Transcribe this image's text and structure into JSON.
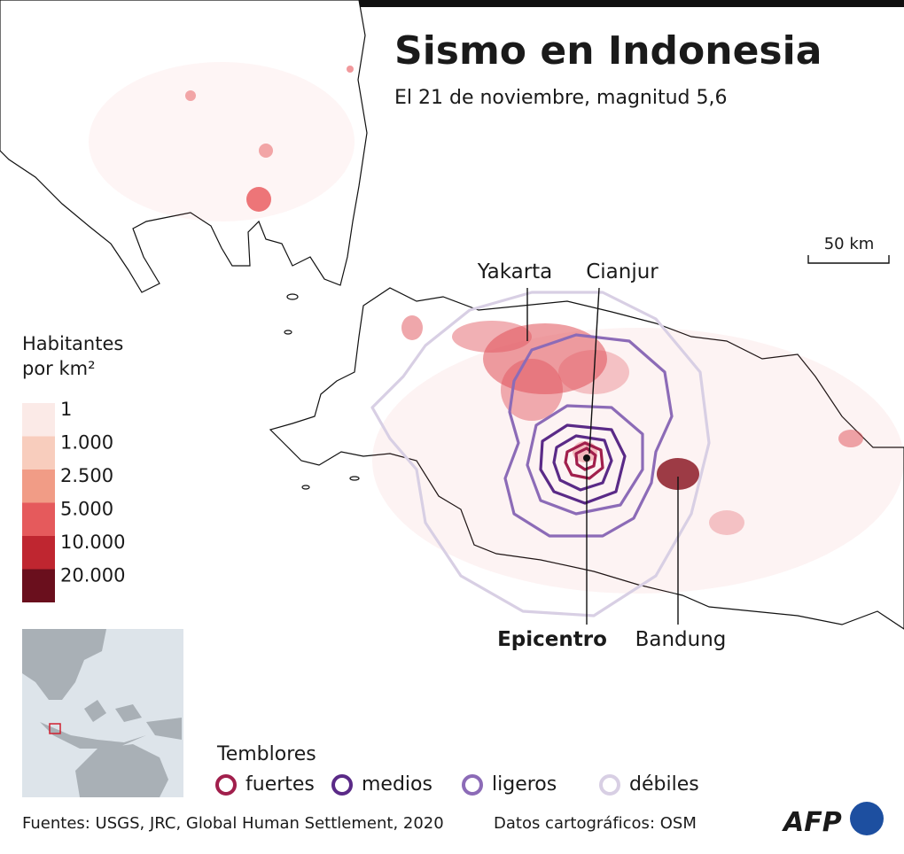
{
  "header": {
    "title": "Sismo en Indonesia",
    "subtitle": "El 21 de noviembre, magnitud 5,6"
  },
  "map": {
    "scale_label": "50 km",
    "places": {
      "yakarta": "Yakarta",
      "cianjur": "Cianjur",
      "epicentro": "Epicentro",
      "bandung": "Bandung"
    }
  },
  "density_legend": {
    "title_lines": [
      "Habitantes",
      "por km²"
    ],
    "classes": [
      {
        "label": "1",
        "color": "#fbeae7"
      },
      {
        "label": "1.000",
        "color": "#f8cdbd"
      },
      {
        "label": "2.500",
        "color": "#f19c86"
      },
      {
        "label": "5.000",
        "color": "#e55a5c"
      },
      {
        "label": "10.000",
        "color": "#bf2630"
      },
      {
        "label": "20.000",
        "color": "#6a0f1d"
      }
    ]
  },
  "shaking_legend": {
    "title": "Temblores",
    "items": [
      {
        "label": "fuertes",
        "color": "#a11f4c"
      },
      {
        "label": "medios",
        "color": "#5a2a87"
      },
      {
        "label": "ligeros",
        "color": "#8c6bb7"
      },
      {
        "label": "débiles",
        "color": "#d8cfe4"
      }
    ]
  },
  "footer": {
    "sources": "Fuentes: USGS, JRC, Global Human Settlement, 2020",
    "map_data": "Datos cartográficos: OSM",
    "logo": "AFP"
  }
}
